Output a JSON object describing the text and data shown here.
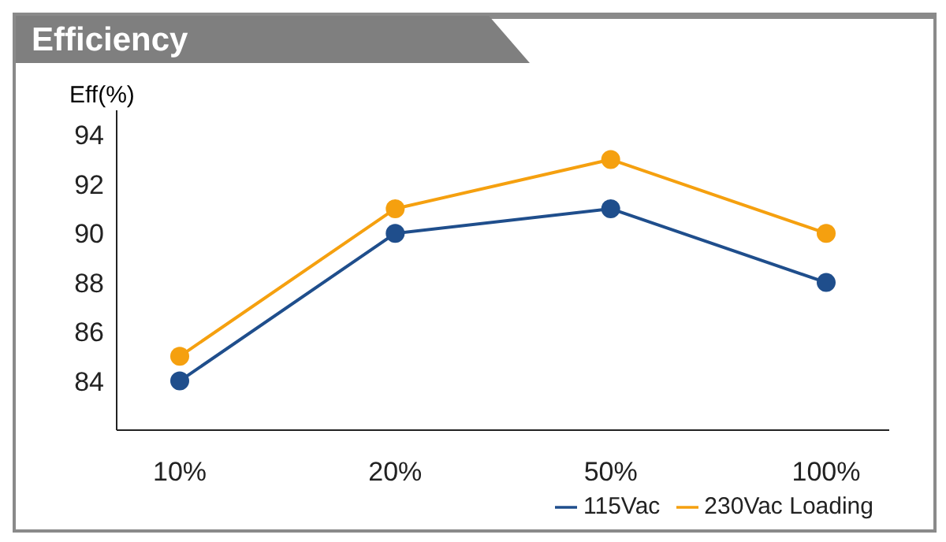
{
  "chart_data": {
    "type": "line",
    "title": "Efficiency",
    "ylabel": "Eff(%)",
    "categories": [
      "10%",
      "20%",
      "50%",
      "100%"
    ],
    "series": [
      {
        "name": "115Vac",
        "color": "#1f4e8c",
        "values": [
          84,
          90,
          91,
          88
        ]
      },
      {
        "name": "230Vac Loading",
        "color": "#f5a00f",
        "values": [
          85,
          91,
          93,
          90
        ]
      }
    ],
    "ylim": [
      82,
      95
    ],
    "yticks": [
      84,
      86,
      88,
      90,
      92,
      94
    ],
    "legend": "bottom right",
    "marker": "circle",
    "line_style": "solid"
  }
}
